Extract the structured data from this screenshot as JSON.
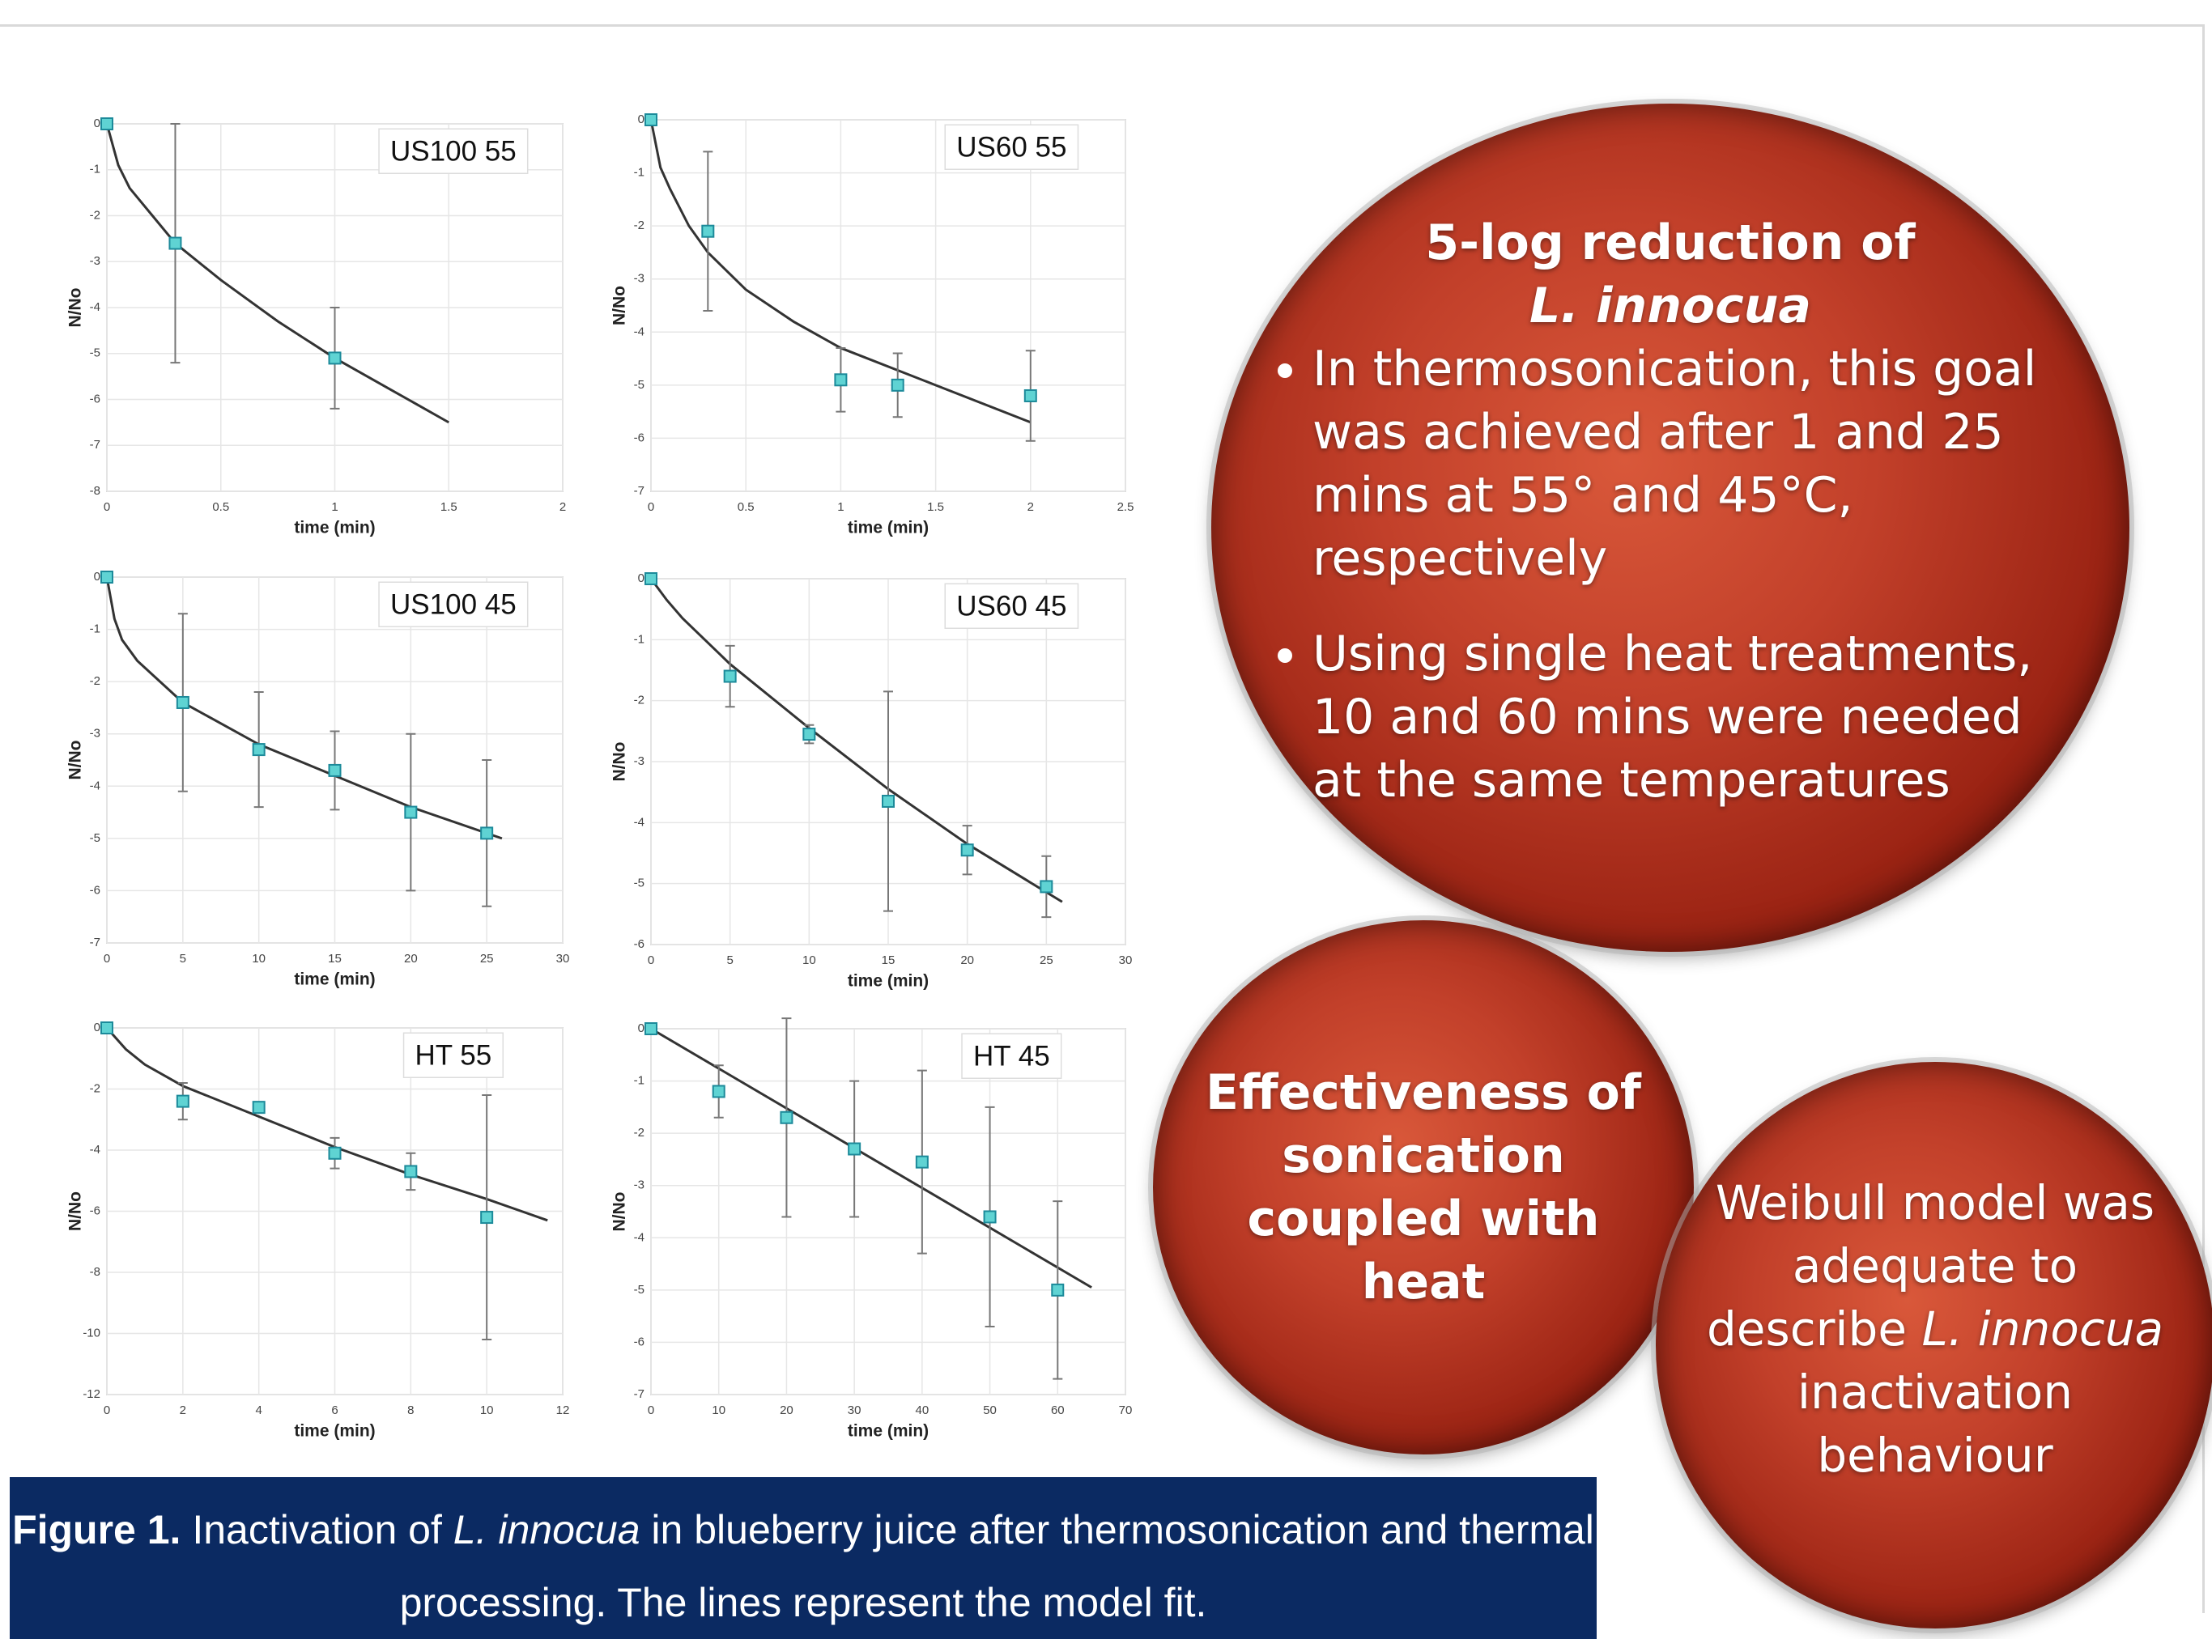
{
  "chart_data": [
    {
      "type": "scatter",
      "title": "US100 55",
      "x_label": "time (min)",
      "y_label": "N/No",
      "xlim": [
        0,
        2
      ],
      "xticks": [
        0,
        0.5,
        1,
        1.5,
        2
      ],
      "ylim": [
        -8,
        0
      ],
      "yticks": [
        0,
        -1,
        -2,
        -3,
        -4,
        -5,
        -6,
        -7,
        -8
      ],
      "grid": true,
      "series": [
        {
          "mode": "line",
          "color": "#333333",
          "x": [
            0,
            0.05,
            0.1,
            0.2,
            0.3,
            0.5,
            0.75,
            1,
            1.25,
            1.5
          ],
          "values": [
            0,
            -0.9,
            -1.4,
            -2.0,
            -2.6,
            -3.4,
            -4.3,
            -5.1,
            -5.8,
            -6.5
          ]
        },
        {
          "mode": "markers",
          "color": "#5fd3d3",
          "x": [
            0,
            0.3,
            1
          ],
          "values": [
            0,
            -2.6,
            -5.1
          ],
          "errors": [
            0,
            2.6,
            1.1
          ]
        }
      ]
    },
    {
      "type": "scatter",
      "title": "US60 55",
      "x_label": "time (min)",
      "y_label": "N/No",
      "xlim": [
        0,
        2.5
      ],
      "xticks": [
        0,
        0.5,
        1,
        1.5,
        2,
        2.5
      ],
      "ylim": [
        -7,
        0
      ],
      "yticks": [
        0,
        -1,
        -2,
        -3,
        -4,
        -5,
        -6,
        -7
      ],
      "grid": true,
      "series": [
        {
          "mode": "line",
          "color": "#333333",
          "x": [
            0,
            0.05,
            0.1,
            0.2,
            0.3,
            0.5,
            0.75,
            1,
            1.5,
            2
          ],
          "values": [
            0,
            -0.9,
            -1.3,
            -2.0,
            -2.5,
            -3.2,
            -3.8,
            -4.3,
            -5.0,
            -5.7
          ]
        },
        {
          "mode": "markers",
          "color": "#5fd3d3",
          "x": [
            0,
            0.3,
            1,
            1.3,
            2
          ],
          "values": [
            0,
            -2.1,
            -4.9,
            -5.0,
            -5.2
          ],
          "errors": [
            0,
            1.5,
            0.6,
            0.6,
            0.85
          ]
        }
      ]
    },
    {
      "type": "scatter",
      "title": "US100 45",
      "x_label": "time (min)",
      "y_label": "N/No",
      "xlim": [
        0,
        30
      ],
      "xticks": [
        0,
        5,
        10,
        15,
        20,
        25,
        30
      ],
      "ylim": [
        -7,
        0
      ],
      "yticks": [
        0,
        -1,
        -2,
        -3,
        -4,
        -5,
        -6,
        -7
      ],
      "grid": true,
      "series": [
        {
          "mode": "line",
          "color": "#333333",
          "x": [
            0,
            0.5,
            1,
            2,
            5,
            10,
            15,
            20,
            26
          ],
          "values": [
            0,
            -0.8,
            -1.2,
            -1.6,
            -2.4,
            -3.2,
            -3.8,
            -4.4,
            -5.0
          ]
        },
        {
          "mode": "markers",
          "color": "#5fd3d3",
          "x": [
            0,
            5,
            10,
            15,
            20,
            25
          ],
          "values": [
            0,
            -2.4,
            -3.3,
            -3.7,
            -4.5,
            -4.9
          ],
          "errors": [
            0,
            1.7,
            1.1,
            0.75,
            1.5,
            1.4
          ]
        }
      ]
    },
    {
      "type": "scatter",
      "title": "US60 45",
      "x_label": "time (min)",
      "y_label": "N/No",
      "xlim": [
        0,
        30
      ],
      "xticks": [
        0,
        5,
        10,
        15,
        20,
        25,
        30
      ],
      "ylim": [
        -6,
        0
      ],
      "yticks": [
        0,
        -1,
        -2,
        -3,
        -4,
        -5,
        -6
      ],
      "grid": true,
      "series": [
        {
          "mode": "line",
          "color": "#333333",
          "x": [
            0,
            1,
            2,
            5,
            10,
            15,
            20,
            26
          ],
          "values": [
            0,
            -0.35,
            -0.65,
            -1.4,
            -2.45,
            -3.45,
            -4.35,
            -5.3
          ]
        },
        {
          "mode": "markers",
          "color": "#5fd3d3",
          "x": [
            0,
            5,
            10,
            15,
            20,
            25
          ],
          "values": [
            0,
            -1.6,
            -2.55,
            -3.65,
            -4.45,
            -5.05
          ],
          "errors": [
            0,
            0.5,
            0.15,
            1.8,
            0.4,
            0.5
          ]
        }
      ]
    },
    {
      "type": "scatter",
      "title": "HT 55",
      "x_label": "time (min)",
      "y_label": "N/No",
      "xlim": [
        0,
        12
      ],
      "xticks": [
        0,
        2,
        4,
        6,
        8,
        10,
        12
      ],
      "ylim": [
        -12,
        0
      ],
      "yticks": [
        0,
        -2,
        -4,
        -6,
        -8,
        -10,
        -12
      ],
      "grid": true,
      "series": [
        {
          "mode": "line",
          "color": "#333333",
          "x": [
            0,
            0.5,
            1,
            2,
            4,
            6,
            8,
            10,
            11.6
          ],
          "values": [
            0,
            -0.7,
            -1.2,
            -1.9,
            -2.9,
            -3.9,
            -4.8,
            -5.6,
            -6.3
          ]
        },
        {
          "mode": "markers",
          "color": "#5fd3d3",
          "x": [
            0,
            2,
            4,
            6,
            8,
            10
          ],
          "values": [
            0,
            -2.4,
            -2.6,
            -4.1,
            -4.7,
            -6.2
          ],
          "errors": [
            0,
            0.6,
            0,
            0.5,
            0.6,
            4
          ]
        }
      ]
    },
    {
      "type": "scatter",
      "title": "HT 45",
      "x_label": "time (min)",
      "y_label": "N/No",
      "xlim": [
        0,
        70
      ],
      "xticks": [
        0,
        10,
        20,
        30,
        40,
        50,
        60,
        70
      ],
      "ylim": [
        -7,
        0
      ],
      "yticks": [
        0,
        -1,
        -2,
        -3,
        -4,
        -5,
        -6,
        -7
      ],
      "grid": true,
      "series": [
        {
          "mode": "line",
          "color": "#333333",
          "x": [
            0,
            65
          ],
          "values": [
            0,
            -4.95
          ]
        },
        {
          "mode": "markers",
          "color": "#5fd3d3",
          "x": [
            0,
            10,
            20,
            30,
            40,
            50,
            60
          ],
          "values": [
            0,
            -1.2,
            -1.7,
            -2.3,
            -2.55,
            -3.6,
            -5.0
          ],
          "errors": [
            0,
            0.5,
            1.9,
            1.3,
            1.75,
            2.1,
            1.7
          ]
        }
      ]
    }
  ],
  "callouts": [
    {
      "heading": [
        "5-log reduction of",
        "L. innocua"
      ],
      "bullets": [
        "In thermosonication, this goal was achieved after 1 and 25 mins at 55° and 45°C, respectively",
        "Using single heat treatments, 10 and 60 mins were needed at the same temperatures"
      ]
    },
    {
      "text": "Effectiveness of sonication coupled with heat"
    },
    {
      "parts": [
        "Weibull model was adequate to describe ",
        "L. innocua",
        " inactivation behaviour"
      ]
    }
  ],
  "caption": {
    "label": "Figure 1.",
    "parts": [
      " Inactivation of ",
      "L. innocua",
      " in blueberry juice after thermosonication and thermal processing. The lines represent the model fit."
    ]
  }
}
